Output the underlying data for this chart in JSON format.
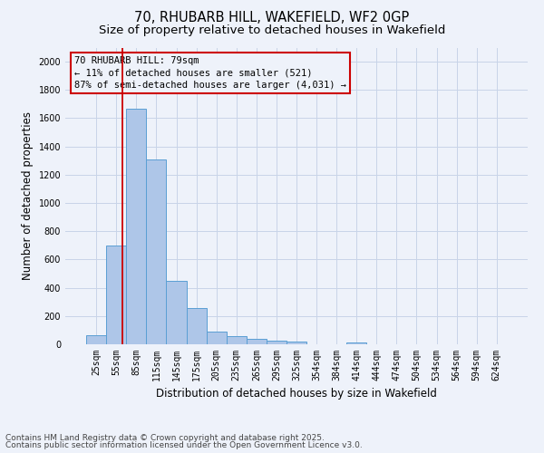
{
  "title_line1": "70, RHUBARB HILL, WAKEFIELD, WF2 0GP",
  "title_line2": "Size of property relative to detached houses in Wakefield",
  "xlabel": "Distribution of detached houses by size in Wakefield",
  "ylabel": "Number of detached properties",
  "categories": [
    "25sqm",
    "55sqm",
    "85sqm",
    "115sqm",
    "145sqm",
    "175sqm",
    "205sqm",
    "235sqm",
    "265sqm",
    "295sqm",
    "325sqm",
    "354sqm",
    "384sqm",
    "414sqm",
    "444sqm",
    "474sqm",
    "504sqm",
    "534sqm",
    "564sqm",
    "594sqm",
    "624sqm"
  ],
  "values": [
    65,
    700,
    1670,
    1310,
    450,
    255,
    90,
    55,
    40,
    28,
    20,
    0,
    0,
    15,
    0,
    0,
    0,
    0,
    0,
    0,
    0
  ],
  "bar_color": "#aec6e8",
  "bar_edge_color": "#5a9fd4",
  "grid_color": "#c8d4e8",
  "bg_color": "#eef2fa",
  "vline_color": "#cc0000",
  "annotation_line1": "70 RHUBARB HILL: 79sqm",
  "annotation_line2": "← 11% of detached houses are smaller (521)",
  "annotation_line3": "87% of semi-detached houses are larger (4,031) →",
  "annotation_box_color": "#cc0000",
  "ylim": [
    0,
    2100
  ],
  "yticks": [
    0,
    200,
    400,
    600,
    800,
    1000,
    1200,
    1400,
    1600,
    1800,
    2000
  ],
  "footnote_line1": "Contains HM Land Registry data © Crown copyright and database right 2025.",
  "footnote_line2": "Contains public sector information licensed under the Open Government Licence v3.0.",
  "title_fontsize": 10.5,
  "subtitle_fontsize": 9.5,
  "label_fontsize": 8.5,
  "tick_fontsize": 7,
  "annot_fontsize": 7.5,
  "footnote_fontsize": 6.5
}
